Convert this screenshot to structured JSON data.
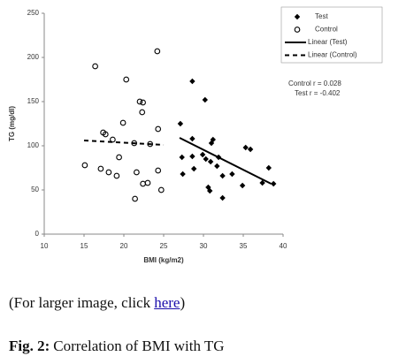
{
  "chart_data": {
    "type": "scatter",
    "x_label": "BMI (kg/m2)",
    "y_label": "TG (mg/dl)",
    "xlim": [
      10,
      40
    ],
    "xticks": [
      10,
      15,
      20,
      25,
      30,
      35,
      40
    ],
    "ylim": [
      0,
      250
    ],
    "yticks": [
      0,
      50,
      100,
      150,
      200,
      250
    ],
    "grid": false,
    "legend": "top-right",
    "annotations": [
      "Control r = 0.028",
      "Test r = -0.402"
    ],
    "series": [
      {
        "name": "Test",
        "marker": "diamond",
        "color": "#000000",
        "x": [
          28.6,
          30.2,
          27.1,
          28.6,
          31.2,
          31.0,
          29.9,
          30.3,
          30.9,
          31.9,
          27.3,
          28.6,
          31.7,
          28.8,
          32.4,
          33.6,
          35.3,
          35.9,
          27.4,
          30.6,
          30.8,
          32.4,
          34.9,
          37.4,
          38.2,
          38.8
        ],
        "values": [
          173,
          152,
          125,
          108,
          107,
          103,
          90,
          85,
          82,
          87,
          87,
          88,
          77,
          74,
          66,
          68,
          98,
          96,
          68,
          53,
          49,
          41,
          55,
          58,
          75,
          57
        ]
      },
      {
        "name": "Control",
        "marker": "circle-open",
        "color": "#000000",
        "x": [
          15.1,
          16.4,
          20.3,
          24.2,
          22.0,
          22.4,
          22.3,
          19.9,
          24.3,
          17.4,
          17.7,
          18.6,
          21.3,
          23.3,
          19.4,
          17.1,
          18.1,
          19.1,
          21.6,
          24.3,
          23.0,
          22.4,
          24.7,
          21.4
        ],
        "values": [
          78,
          190,
          175,
          207,
          150,
          149,
          138,
          126,
          119,
          115,
          113,
          107,
          103,
          102,
          87,
          74,
          70,
          66,
          70,
          72,
          58,
          57,
          50,
          40
        ]
      },
      {
        "name": "Linear (Test)",
        "marker": "line",
        "color": "#000000",
        "x": [
          27,
          38.5
        ],
        "values": [
          109,
          57
        ]
      },
      {
        "name": "Linear (Control)",
        "marker": "dashed-line",
        "color": "#000000",
        "x": [
          15,
          25
        ],
        "values": [
          106,
          101
        ]
      }
    ]
  },
  "document": {
    "link_prefix": "(For larger image, click",
    "link": "here",
    "link_suffix": ")",
    "figure_label": "Fig. 2:",
    "caption": "Correlation of BMI with TG"
  }
}
